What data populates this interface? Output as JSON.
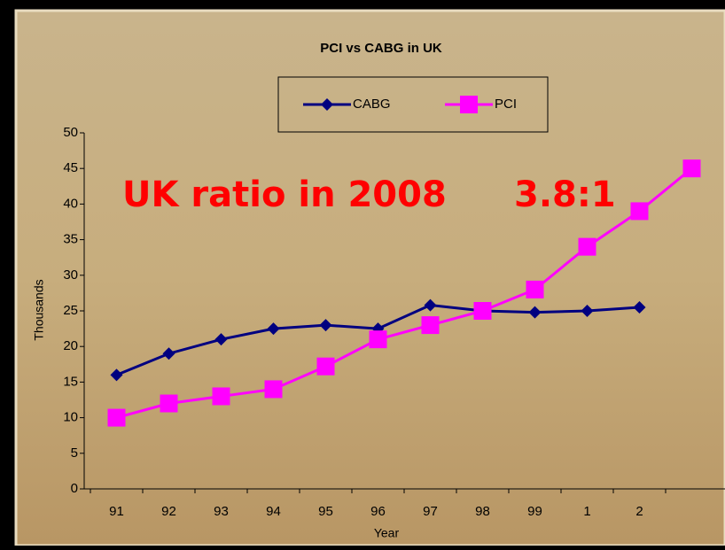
{
  "chart_data": {
    "type": "line",
    "title": "PCI vs CABG in UK",
    "x_label": "Year",
    "y_label": "Thousands",
    "categories": [
      "91",
      "92",
      "93",
      "94",
      "95",
      "96",
      "97",
      "98",
      "99",
      "1",
      "2",
      null
    ],
    "series": [
      {
        "name": "CABG",
        "color": "#000080",
        "marker": "diamond",
        "values": [
          16,
          19,
          21,
          22.5,
          23,
          22.5,
          25.8,
          25,
          24.8,
          25,
          25.5,
          null
        ]
      },
      {
        "name": "PCI",
        "color": "#ff00ff",
        "marker": "square",
        "values": [
          10,
          12,
          13,
          14,
          17.2,
          21,
          23,
          25,
          28,
          34,
          39,
          45
        ]
      }
    ],
    "ylim": [
      0,
      50
    ],
    "yticks": [
      0,
      5,
      10,
      15,
      20,
      25,
      30,
      35,
      40,
      45,
      50
    ],
    "legend": "top",
    "annotations": [
      "UK ratio in 2008",
      "3.8:1"
    ],
    "annotation_color": "#ff0000"
  }
}
